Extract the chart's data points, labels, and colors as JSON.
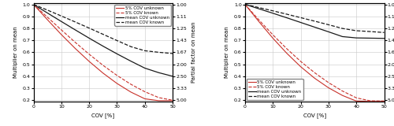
{
  "n4": {
    "cov_pct": [
      0,
      5,
      10,
      15,
      20,
      25,
      30,
      35,
      40,
      45,
      50
    ],
    "five_unknown": [
      1.0,
      0.872,
      0.748,
      0.632,
      0.524,
      0.426,
      0.34,
      0.268,
      0.212,
      0.196,
      0.196
    ],
    "five_known": [
      1.0,
      0.893,
      0.787,
      0.683,
      0.584,
      0.491,
      0.407,
      0.333,
      0.271,
      0.222,
      0.2
    ],
    "mean_unknown": [
      1.0,
      0.928,
      0.857,
      0.787,
      0.718,
      0.651,
      0.587,
      0.526,
      0.468,
      0.43,
      0.4
    ],
    "mean_known": [
      1.0,
      0.952,
      0.903,
      0.853,
      0.802,
      0.75,
      0.698,
      0.647,
      0.613,
      0.6,
      0.59
    ]
  },
  "n10": {
    "cov_pct": [
      0,
      5,
      10,
      15,
      20,
      25,
      30,
      35,
      40,
      45,
      50
    ],
    "five_unknown": [
      1.0,
      0.856,
      0.718,
      0.592,
      0.48,
      0.384,
      0.304,
      0.24,
      0.193,
      0.19,
      0.19
    ],
    "five_known": [
      1.0,
      0.87,
      0.746,
      0.63,
      0.524,
      0.43,
      0.347,
      0.277,
      0.22,
      0.195,
      0.193
    ],
    "mean_unknown": [
      1.0,
      0.963,
      0.926,
      0.888,
      0.849,
      0.81,
      0.771,
      0.731,
      0.72,
      0.718,
      0.716
    ],
    "mean_known": [
      1.0,
      0.973,
      0.946,
      0.918,
      0.889,
      0.86,
      0.83,
      0.799,
      0.78,
      0.773,
      0.765
    ]
  },
  "right_yticks": [
    1.0,
    0.9,
    0.8,
    0.7,
    0.6,
    0.5,
    0.4,
    0.3,
    0.2
  ],
  "right_ytick_labels": [
    "1.00",
    "1.11",
    "1.25",
    "1.43",
    "1.67",
    "2.00",
    "2.50",
    "3.33",
    "5.00"
  ],
  "ylim": [
    0.19,
    1.01
  ],
  "xlim": [
    0,
    50
  ],
  "xlabel": "COV [%]",
  "ylabel_left": "Multiplier on mean",
  "ylabel_right": "Partial factor on mean",
  "color_red": "#c8312a",
  "color_black": "#1a1a1a",
  "legend_labels": [
    "5% COV unknown",
    "5% COV known",
    "mean COV unknown",
    "mean COV known"
  ],
  "xticks": [
    0,
    10,
    20,
    30,
    40,
    50
  ],
  "left_yticks": [
    0.2,
    0.3,
    0.4,
    0.5,
    0.6,
    0.7,
    0.8,
    0.9,
    1.0
  ]
}
